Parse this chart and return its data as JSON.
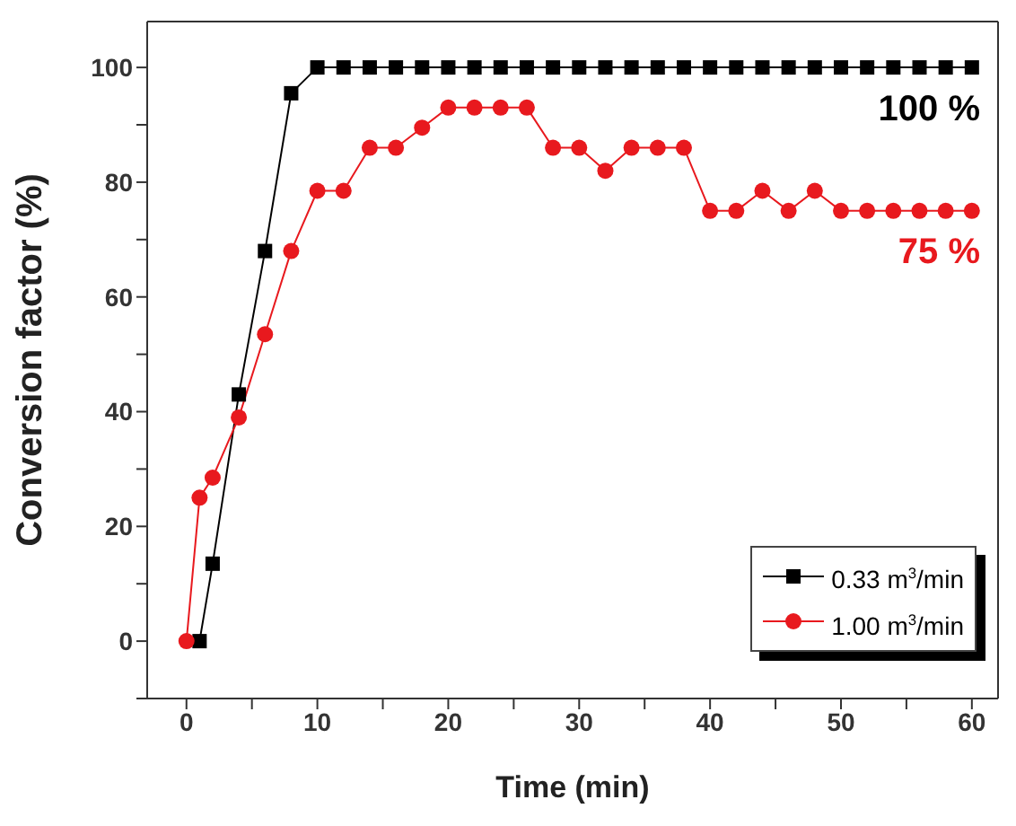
{
  "chart_data": {
    "type": "line",
    "xlabel": "Time (min)",
    "ylabel": "Conversion factor (%)",
    "xlim": [
      -3,
      62
    ],
    "ylim": [
      -10,
      108
    ],
    "xticks": [
      0,
      {
        "value": 5,
        "label": null
      },
      10,
      {
        "value": 15,
        "label": null
      },
      20,
      {
        "value": 25,
        "label": null
      },
      30,
      {
        "value": 35,
        "label": null
      },
      40,
      {
        "value": 45,
        "label": null
      },
      50,
      {
        "value": 55,
        "label": null
      },
      60
    ],
    "yticks": [
      {
        "value": -10,
        "label": null
      },
      0,
      {
        "value": 10,
        "label": null
      },
      20,
      {
        "value": 30,
        "label": null
      },
      40,
      {
        "value": 50,
        "label": null
      },
      60,
      {
        "value": 70,
        "label": null
      },
      80,
      {
        "value": 90,
        "label": null
      },
      100
    ],
    "grid": false,
    "legend": "bottom right",
    "line_style": "solid",
    "annotations": [
      "100 %",
      "75 %"
    ],
    "series": [
      {
        "name": "0.33 m$^{3}$/min",
        "color": "#000000",
        "marker": "square",
        "x": [
          1,
          2,
          4,
          6,
          8,
          10,
          12,
          14,
          16,
          18,
          20,
          22,
          24,
          26,
          28,
          30,
          32,
          34,
          36,
          38,
          40,
          42,
          44,
          46,
          48,
          50,
          52,
          54,
          56,
          58,
          60
        ],
        "values": [
          0,
          13.5,
          43,
          68,
          95.5,
          100,
          100,
          100,
          100,
          100,
          100,
          100,
          100,
          100,
          100,
          100,
          100,
          100,
          100,
          100,
          100,
          100,
          100,
          100,
          100,
          100,
          100,
          100,
          100,
          100,
          100
        ]
      },
      {
        "name": "1.00 m$^{3}$/min",
        "color": "#e8191e",
        "marker": "circle",
        "x": [
          0,
          1,
          2,
          4,
          6,
          8,
          10,
          12,
          14,
          16,
          18,
          20,
          22,
          24,
          26,
          28,
          30,
          32,
          34,
          36,
          38,
          40,
          42,
          44,
          46,
          48,
          50,
          52,
          54,
          56,
          58,
          60
        ],
        "values": [
          0,
          25,
          28.5,
          39,
          53.5,
          68,
          78.5,
          78.5,
          86,
          86,
          89.5,
          93,
          93,
          93,
          93,
          86,
          86,
          82,
          86,
          86,
          86,
          75,
          75,
          78.5,
          75,
          78.5,
          75,
          75,
          75,
          75,
          75,
          75
        ]
      }
    ]
  }
}
